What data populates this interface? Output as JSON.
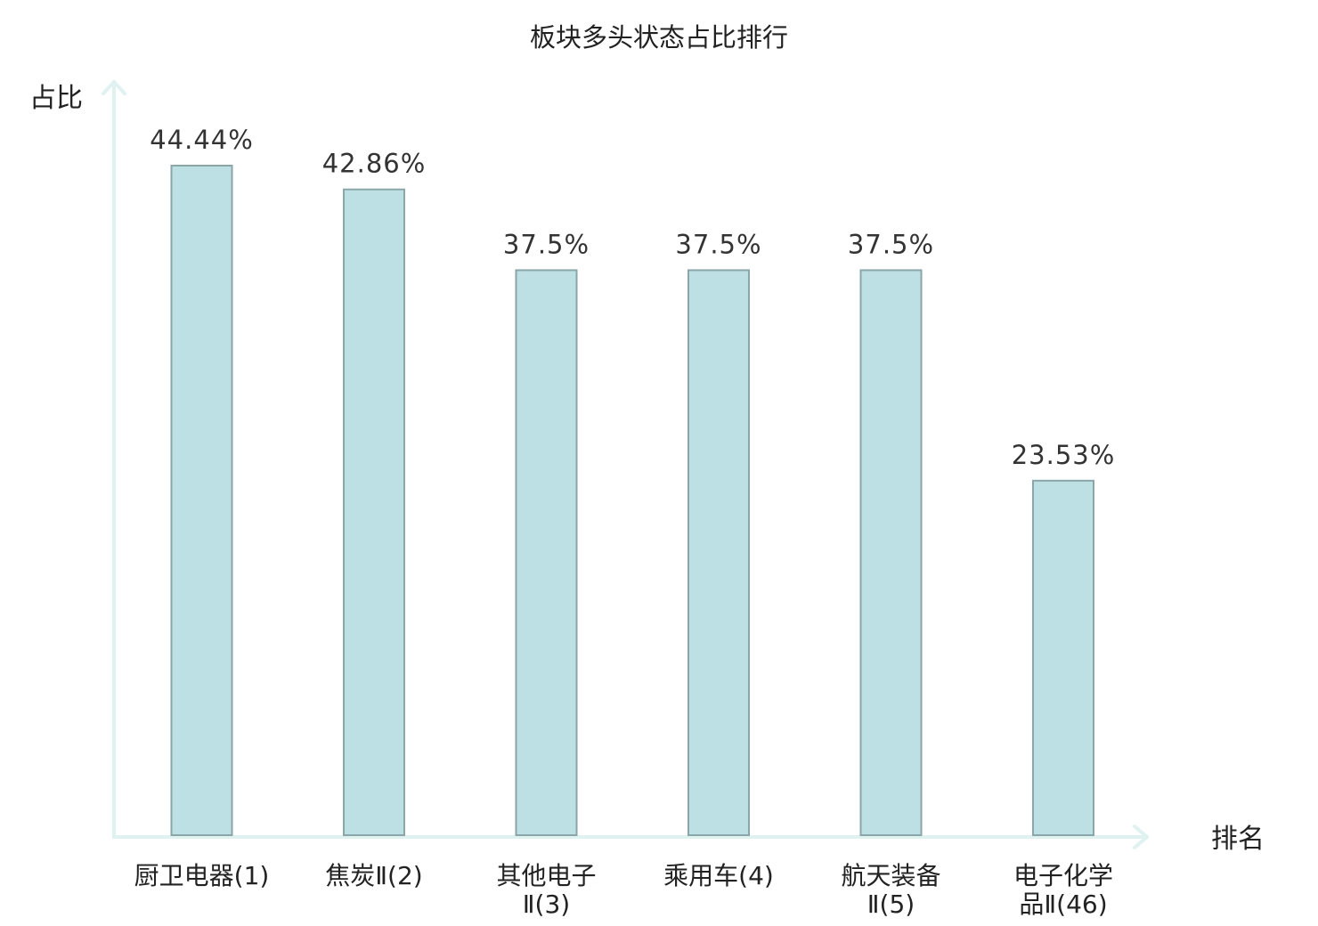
{
  "chart_data": {
    "type": "bar",
    "title": "板块多头状态占比排行",
    "ylabel": "占比",
    "xlabel": "排名",
    "categories": [
      [
        "厨卫电器(1)"
      ],
      [
        "焦炭Ⅱ(2)"
      ],
      [
        "其他电子",
        "Ⅱ(3)"
      ],
      [
        "乘用车(4)"
      ],
      [
        "航天装备",
        "Ⅱ(5)"
      ],
      [
        "电子化学",
        "品Ⅱ(46)"
      ]
    ],
    "values": [
      44.44,
      42.86,
      37.5,
      37.5,
      37.5,
      23.53
    ],
    "value_labels": [
      "44.44%",
      "42.86%",
      "37.5%",
      "37.5%",
      "37.5%",
      "23.53%"
    ],
    "highlight_index": 5,
    "ylim": [
      0,
      44.44
    ],
    "grid": false,
    "colors": {
      "bar_fill": "#bce0e3",
      "bar_stroke": "#8aa6a8",
      "axis": "#dff2ef",
      "text": "#222222",
      "highlight_text": "#e00000"
    }
  }
}
